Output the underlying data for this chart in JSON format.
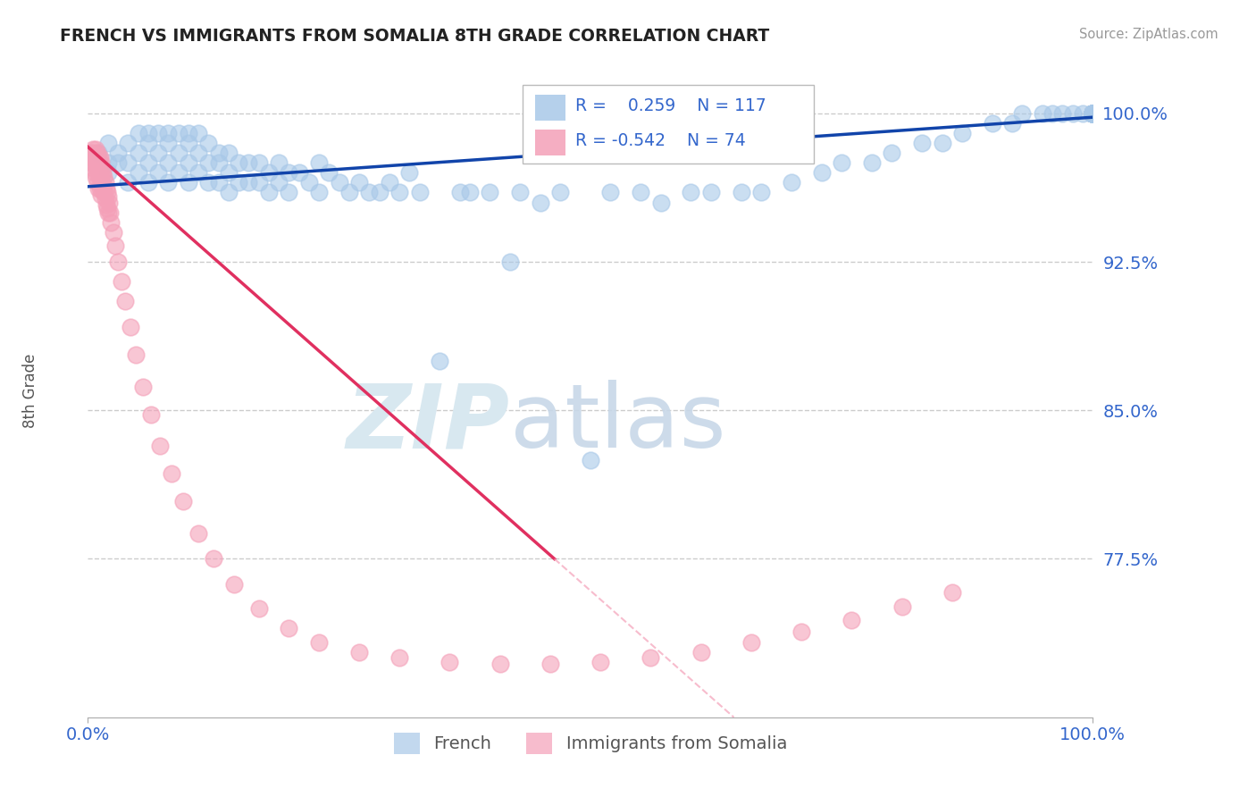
{
  "title": "FRENCH VS IMMIGRANTS FROM SOMALIA 8TH GRADE CORRELATION CHART",
  "source_text": "Source: ZipAtlas.com",
  "ylabel": "8th Grade",
  "xlim": [
    0.0,
    1.0
  ],
  "ylim": [
    0.695,
    1.025
  ],
  "yticks": [
    1.0,
    0.925,
    0.85,
    0.775
  ],
  "ytick_labels": [
    "100.0%",
    "92.5%",
    "85.0%",
    "77.5%"
  ],
  "xtick_positions": [
    0.0,
    1.0
  ],
  "xtick_labels": [
    "0.0%",
    "100.0%"
  ],
  "blue_R": 0.259,
  "blue_N": 117,
  "pink_R": -0.542,
  "pink_N": 74,
  "blue_color": "#A8C8E8",
  "pink_color": "#F4A0B8",
  "blue_line_color": "#1144AA",
  "pink_line_color": "#E03060",
  "pink_line_dashed_color": "#F4A0B8",
  "legend_label_blue": "French",
  "legend_label_pink": "Immigrants from Somalia",
  "title_color": "#222222",
  "axis_label_color": "#555555",
  "tick_label_color": "#3366CC",
  "grid_color": "#CCCCCC",
  "background_color": "#FFFFFF",
  "blue_x": [
    0.01,
    0.02,
    0.02,
    0.02,
    0.03,
    0.03,
    0.04,
    0.04,
    0.04,
    0.05,
    0.05,
    0.05,
    0.06,
    0.06,
    0.06,
    0.06,
    0.07,
    0.07,
    0.07,
    0.08,
    0.08,
    0.08,
    0.08,
    0.09,
    0.09,
    0.09,
    0.1,
    0.1,
    0.1,
    0.1,
    0.11,
    0.11,
    0.11,
    0.12,
    0.12,
    0.12,
    0.13,
    0.13,
    0.13,
    0.14,
    0.14,
    0.14,
    0.15,
    0.15,
    0.16,
    0.16,
    0.17,
    0.17,
    0.18,
    0.18,
    0.19,
    0.19,
    0.2,
    0.2,
    0.21,
    0.22,
    0.23,
    0.23,
    0.24,
    0.25,
    0.26,
    0.27,
    0.28,
    0.29,
    0.3,
    0.31,
    0.32,
    0.33,
    0.35,
    0.37,
    0.38,
    0.4,
    0.42,
    0.43,
    0.45,
    0.47,
    0.5,
    0.52,
    0.55,
    0.57,
    0.6,
    0.62,
    0.65,
    0.67,
    0.7,
    0.73,
    0.75,
    0.78,
    0.8,
    0.83,
    0.85,
    0.87,
    0.9,
    0.92,
    0.93,
    0.95,
    0.96,
    0.97,
    0.98,
    0.99,
    1.0,
    1.0,
    1.0,
    1.0,
    1.0,
    1.0,
    1.0,
    1.0,
    1.0,
    1.0,
    1.0,
    1.0,
    1.0,
    1.0,
    1.0,
    1.0,
    1.0
  ],
  "blue_y": [
    0.98,
    0.975,
    0.985,
    0.97,
    0.98,
    0.975,
    0.985,
    0.975,
    0.965,
    0.99,
    0.98,
    0.97,
    0.99,
    0.985,
    0.975,
    0.965,
    0.99,
    0.98,
    0.97,
    0.99,
    0.985,
    0.975,
    0.965,
    0.99,
    0.98,
    0.97,
    0.99,
    0.985,
    0.975,
    0.965,
    0.99,
    0.98,
    0.97,
    0.985,
    0.975,
    0.965,
    0.98,
    0.975,
    0.965,
    0.98,
    0.97,
    0.96,
    0.975,
    0.965,
    0.975,
    0.965,
    0.975,
    0.965,
    0.97,
    0.96,
    0.975,
    0.965,
    0.97,
    0.96,
    0.97,
    0.965,
    0.975,
    0.96,
    0.97,
    0.965,
    0.96,
    0.965,
    0.96,
    0.96,
    0.965,
    0.96,
    0.97,
    0.96,
    0.875,
    0.96,
    0.96,
    0.96,
    0.925,
    0.96,
    0.955,
    0.96,
    0.825,
    0.96,
    0.96,
    0.955,
    0.96,
    0.96,
    0.96,
    0.96,
    0.965,
    0.97,
    0.975,
    0.975,
    0.98,
    0.985,
    0.985,
    0.99,
    0.995,
    0.995,
    1.0,
    1.0,
    1.0,
    1.0,
    1.0,
    1.0,
    1.0,
    1.0,
    1.0,
    1.0,
    1.0,
    1.0,
    1.0,
    1.0,
    1.0,
    1.0,
    1.0,
    1.0,
    1.0,
    1.0,
    1.0,
    1.0,
    1.0
  ],
  "pink_x": [
    0.002,
    0.003,
    0.004,
    0.005,
    0.005,
    0.006,
    0.006,
    0.007,
    0.007,
    0.008,
    0.008,
    0.008,
    0.009,
    0.009,
    0.009,
    0.01,
    0.01,
    0.01,
    0.011,
    0.011,
    0.012,
    0.012,
    0.012,
    0.013,
    0.013,
    0.013,
    0.014,
    0.014,
    0.015,
    0.015,
    0.016,
    0.016,
    0.017,
    0.017,
    0.018,
    0.018,
    0.019,
    0.019,
    0.02,
    0.02,
    0.021,
    0.022,
    0.023,
    0.025,
    0.027,
    0.03,
    0.033,
    0.037,
    0.042,
    0.048,
    0.055,
    0.063,
    0.072,
    0.083,
    0.095,
    0.11,
    0.125,
    0.145,
    0.17,
    0.2,
    0.23,
    0.27,
    0.31,
    0.36,
    0.41,
    0.46,
    0.51,
    0.56,
    0.61,
    0.66,
    0.71,
    0.76,
    0.81,
    0.86
  ],
  "pink_y": [
    0.98,
    0.975,
    0.978,
    0.982,
    0.975,
    0.98,
    0.972,
    0.978,
    0.97,
    0.982,
    0.975,
    0.968,
    0.98,
    0.973,
    0.965,
    0.978,
    0.97,
    0.962,
    0.976,
    0.968,
    0.978,
    0.97,
    0.962,
    0.975,
    0.967,
    0.959,
    0.972,
    0.964,
    0.97,
    0.962,
    0.968,
    0.96,
    0.965,
    0.957,
    0.962,
    0.954,
    0.96,
    0.952,
    0.958,
    0.95,
    0.955,
    0.95,
    0.945,
    0.94,
    0.933,
    0.925,
    0.915,
    0.905,
    0.892,
    0.878,
    0.862,
    0.848,
    0.832,
    0.818,
    0.804,
    0.788,
    0.775,
    0.762,
    0.75,
    0.74,
    0.733,
    0.728,
    0.725,
    0.723,
    0.722,
    0.722,
    0.723,
    0.725,
    0.728,
    0.733,
    0.738,
    0.744,
    0.751,
    0.758
  ],
  "pink_line_solid_end": 0.775,
  "blue_line_start_y": 0.963,
  "blue_line_end_y": 0.998,
  "pink_line_start_y": 0.983,
  "pink_line_end_y": 0.535
}
